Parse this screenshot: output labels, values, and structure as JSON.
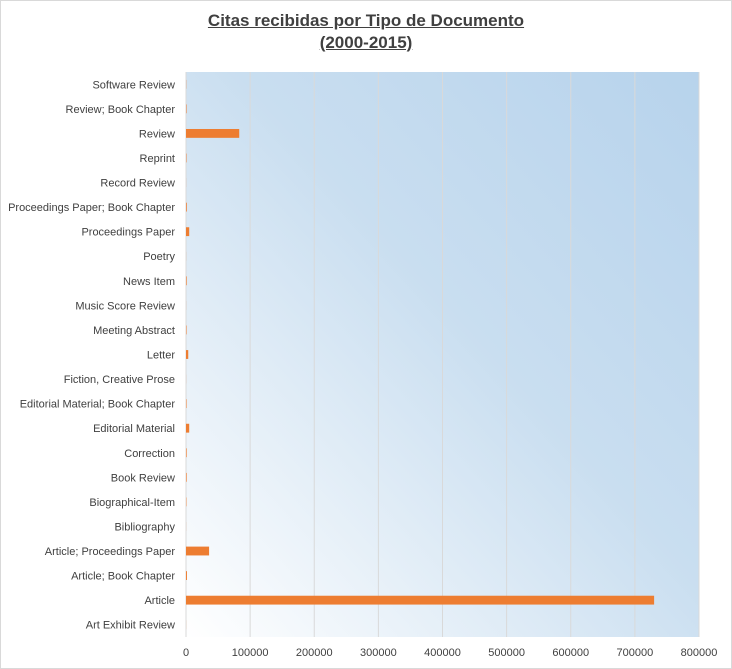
{
  "chart_data": {
    "type": "bar",
    "orientation": "horizontal",
    "title": "Citas recibidas por Tipo de Documento",
    "subtitle": "(2000-2015)",
    "xlim": [
      0,
      800000
    ],
    "x_ticks": [
      "0",
      "100000",
      "200000",
      "300000",
      "400000",
      "500000",
      "600000",
      "700000",
      "800000"
    ],
    "x_tick_values": [
      0,
      100000,
      200000,
      300000,
      400000,
      500000,
      600000,
      700000,
      800000
    ],
    "grid": true,
    "bar_color": "#ed7d31",
    "plot_background": [
      "#ffffff",
      "#c9def0",
      "#b7d3ec"
    ],
    "categories": [
      "Software Review",
      "Review; Book Chapter",
      "Review",
      "Reprint",
      "Record Review",
      "Proceedings Paper; Book Chapter",
      "Proceedings Paper",
      "Poetry",
      "News Item",
      "Music Score Review",
      "Meeting Abstract",
      "Letter",
      "Fiction, Creative Prose",
      "Editorial Material; Book Chapter",
      "Editorial Material",
      "Correction",
      "Book Review",
      "Biographical-Item",
      "Bibliography",
      "Article; Proceedings Paper",
      "Article; Book Chapter",
      "Article",
      "Art Exhibit Review"
    ],
    "values": [
      300,
      800,
      83000,
      700,
      100,
      1200,
      5000,
      100,
      1000,
      100,
      800,
      3500,
      100,
      800,
      5000,
      1000,
      1000,
      600,
      100,
      36000,
      1500,
      730000,
      100
    ]
  }
}
